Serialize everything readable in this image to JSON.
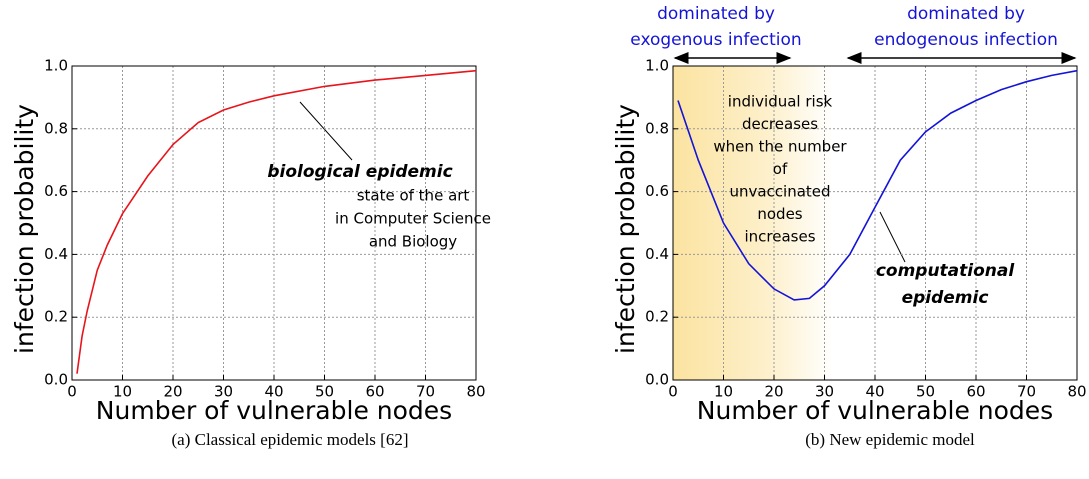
{
  "chart_data": [
    {
      "type": "line",
      "caption": "(a) Classical epidemic models [62]",
      "xlabel": "Number of vulnerable nodes",
      "ylabel": "infection probability",
      "x": [
        1,
        2,
        3,
        5,
        7,
        10,
        15,
        20,
        25,
        30,
        35,
        40,
        50,
        60,
        70,
        80
      ],
      "values": [
        0.02,
        0.14,
        0.22,
        0.35,
        0.43,
        0.53,
        0.65,
        0.75,
        0.82,
        0.86,
        0.885,
        0.905,
        0.935,
        0.955,
        0.97,
        0.985
      ],
      "color": "#e8141b",
      "xlim": [
        0,
        80
      ],
      "ylim": [
        0,
        1
      ],
      "xticks": [
        0,
        10,
        20,
        30,
        40,
        50,
        60,
        70,
        80
      ],
      "yticks": [
        {
          "value": 0,
          "label": "0.0"
        },
        0.2,
        0.4,
        0.6,
        0.8,
        {
          "value": 1,
          "label": "1.0"
        }
      ],
      "grid": true,
      "annotations": [
        {
          "lines": [
            "biological epidemic"
          ],
          "style": "bold-italic"
        },
        {
          "lines": [
            "state of the art",
            "in  Computer Science",
            "and Biology"
          ],
          "style": "normal"
        }
      ]
    },
    {
      "type": "line",
      "caption": "(b) New epidemic model",
      "xlabel": "Number of vulnerable nodes",
      "ylabel": "infection probability",
      "x": [
        1,
        5,
        10,
        15,
        20,
        24,
        27,
        30,
        35,
        40,
        45,
        50,
        55,
        60,
        65,
        70,
        75,
        80
      ],
      "values": [
        0.89,
        0.7,
        0.5,
        0.37,
        0.29,
        0.255,
        0.26,
        0.3,
        0.4,
        0.55,
        0.7,
        0.79,
        0.85,
        0.89,
        0.925,
        0.95,
        0.97,
        0.985
      ],
      "color": "#1414d8",
      "xlim": [
        0,
        80
      ],
      "ylim": [
        0,
        1
      ],
      "xticks": [
        0,
        10,
        20,
        30,
        40,
        50,
        60,
        70,
        80
      ],
      "yticks": [
        {
          "value": 0,
          "label": "0.0"
        },
        0.2,
        0.4,
        0.6,
        0.8,
        {
          "value": 1,
          "label": "1.0"
        }
      ],
      "grid": true,
      "annotations": [
        {
          "lines": [
            "individual risk",
            "decreases",
            "when the number",
            "of",
            "unvaccinated",
            "nodes",
            "increases"
          ],
          "style": "normal"
        },
        {
          "lines": [
            "computational",
            "epidemic"
          ],
          "style": "bold-italic"
        },
        {
          "lines": [
            "dominated by",
            "exogenous infection"
          ],
          "style": "blue"
        },
        {
          "lines": [
            "dominated by",
            "endogenous infection"
          ],
          "style": "blue"
        }
      ]
    }
  ]
}
